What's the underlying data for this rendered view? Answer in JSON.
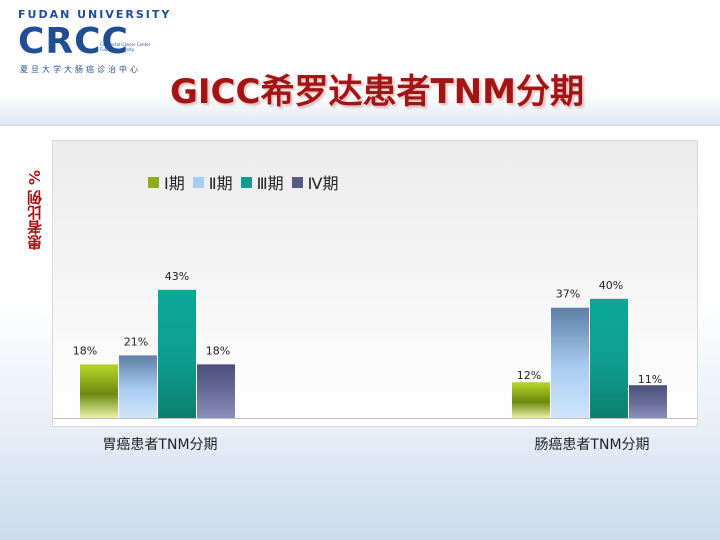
{
  "header": {
    "university": "FUDAN UNIVERSITY",
    "logo_text": "CRCC",
    "logo_subtitle_cn": "夏旦大学大肠癌诊治中心",
    "logo_subtitle_en": "Colorectal Cancer Center FuDan University",
    "title": "GICC希罗达患者TNM分期"
  },
  "colors": {
    "title": "#a31515",
    "stage1": "#8dae1c",
    "stage2": "#a9cdf0",
    "stage3": "#0f9e8e",
    "stage4": "#565a86"
  },
  "chart_data": {
    "type": "bar",
    "title": "GICC希罗达患者TNM分期",
    "ylabel": "患者比例 %",
    "xlabel": "",
    "categories": [
      "胃癌患者TNM分期",
      "肠癌患者TNM分期"
    ],
    "series": [
      {
        "name": "Ⅰ期",
        "values": [
          18,
          12
        ],
        "labels": [
          "18%",
          "12%"
        ]
      },
      {
        "name": "Ⅱ期",
        "values": [
          21,
          37
        ],
        "labels": [
          "21%",
          "37%"
        ]
      },
      {
        "name": "Ⅲ期",
        "values": [
          43,
          40
        ],
        "labels": [
          "43%",
          "40%"
        ]
      },
      {
        "name": "Ⅳ期",
        "values": [
          18,
          11
        ],
        "labels": [
          "18%",
          "11%"
        ]
      }
    ],
    "ylim": [
      0,
      100
    ],
    "grid": false,
    "legend": "top-left"
  }
}
